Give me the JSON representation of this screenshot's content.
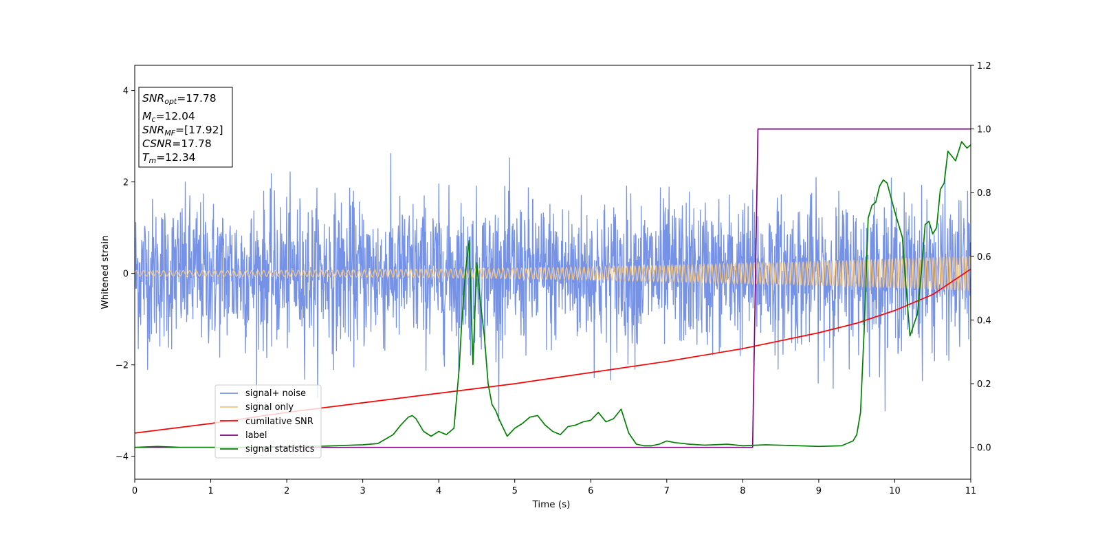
{
  "chart_data": {
    "type": "line",
    "xlabel": "Time (s)",
    "ylabel": "Whitened strain",
    "xlim": [
      0,
      11
    ],
    "ylim": [
      -4.5,
      4.55
    ],
    "y2lim": [
      -0.1,
      1.2
    ],
    "xticks": [
      "0",
      "1",
      "2",
      "3",
      "4",
      "5",
      "6",
      "7",
      "8",
      "9",
      "10",
      "11"
    ],
    "yticks": [
      "−4",
      "−2",
      "0",
      "2",
      "4"
    ],
    "y2ticks": [
      "0.0",
      "0.2",
      "0.4",
      "0.6",
      "0.8",
      "1.0",
      "1.2"
    ],
    "grid": false,
    "legend_position": "lower-left",
    "info_box": {
      "snr_opt": {
        "sym": "SNR",
        "sub": "opt",
        "value": "=17.78"
      },
      "mc": {
        "sym": "M",
        "sub": "c",
        "value": "=12.04"
      },
      "snr_mf": {
        "sym": "SNR",
        "sub": "MF",
        "value": "=[17.92]"
      },
      "csnr": {
        "sym": "CSNR",
        "sub": "",
        "value": "=17.78"
      },
      "tm": {
        "sym": "T",
        "sub": "m",
        "value": "=12.34"
      }
    },
    "series": [
      {
        "name": "signal+ noise",
        "color": "#7592e6",
        "axis": "left",
        "kind": "noise",
        "std": 0.8,
        "envelope": 3.3
      },
      {
        "name": "signal only",
        "color": "#f3c583",
        "axis": "left",
        "kind": "chirp",
        "amp_start": 0.06,
        "amp_end": 0.38
      },
      {
        "name": "cumilative SNR",
        "color": "#ff0000",
        "axis": "right",
        "x": [
          0,
          1,
          2,
          3,
          4,
          5,
          6,
          7,
          8,
          8.5,
          9,
          9.5,
          10,
          10.5,
          11
        ],
        "y": [
          0.045,
          0.075,
          0.11,
          0.14,
          0.17,
          0.2,
          0.235,
          0.27,
          0.31,
          0.335,
          0.36,
          0.39,
          0.43,
          0.48,
          0.56
        ]
      },
      {
        "name": "label",
        "color": "#800080",
        "axis": "right",
        "x": [
          0,
          8.13,
          8.2,
          11
        ],
        "y": [
          0.0,
          0.0,
          1.0,
          1.0
        ]
      },
      {
        "name": "signal statistics",
        "color": "#008000",
        "axis": "right",
        "x": [
          0,
          0.3,
          0.6,
          1.0,
          1.5,
          2.0,
          2.5,
          3.0,
          3.2,
          3.4,
          3.5,
          3.6,
          3.65,
          3.7,
          3.8,
          3.9,
          4.0,
          4.1,
          4.2,
          4.27,
          4.3,
          4.35,
          4.4,
          4.45,
          4.5,
          4.55,
          4.6,
          4.65,
          4.7,
          4.75,
          4.8,
          4.85,
          4.9,
          5.0,
          5.1,
          5.2,
          5.3,
          5.4,
          5.5,
          5.6,
          5.7,
          5.8,
          5.9,
          6.0,
          6.1,
          6.2,
          6.3,
          6.4,
          6.5,
          6.6,
          6.7,
          6.8,
          6.9,
          7.0,
          7.1,
          7.3,
          7.5,
          7.8,
          8.0,
          8.3,
          8.6,
          9.0,
          9.3,
          9.45,
          9.5,
          9.55,
          9.6,
          9.65,
          9.7,
          9.75,
          9.8,
          9.85,
          9.9,
          10.0,
          10.1,
          10.15,
          10.2,
          10.3,
          10.35,
          10.4,
          10.45,
          10.5,
          10.55,
          10.6,
          10.65,
          10.7,
          10.8,
          10.88,
          10.95,
          11.0
        ],
        "y": [
          0.0,
          0.003,
          0.0,
          0.0,
          0.0,
          0.003,
          0.004,
          0.008,
          0.012,
          0.04,
          0.07,
          0.095,
          0.1,
          0.09,
          0.05,
          0.035,
          0.05,
          0.04,
          0.06,
          0.25,
          0.38,
          0.55,
          0.65,
          0.26,
          0.58,
          0.45,
          0.35,
          0.2,
          0.135,
          0.115,
          0.085,
          0.06,
          0.035,
          0.06,
          0.075,
          0.095,
          0.1,
          0.07,
          0.05,
          0.04,
          0.065,
          0.07,
          0.08,
          0.085,
          0.11,
          0.08,
          0.09,
          0.12,
          0.045,
          0.01,
          0.005,
          0.005,
          0.01,
          0.02,
          0.015,
          0.01,
          0.007,
          0.01,
          0.005,
          0.008,
          0.006,
          0.003,
          0.005,
          0.02,
          0.04,
          0.11,
          0.38,
          0.72,
          0.76,
          0.77,
          0.82,
          0.84,
          0.83,
          0.74,
          0.66,
          0.5,
          0.35,
          0.42,
          0.55,
          0.7,
          0.71,
          0.67,
          0.69,
          0.81,
          0.83,
          0.93,
          0.9,
          0.96,
          0.94,
          0.95
        ]
      }
    ]
  }
}
